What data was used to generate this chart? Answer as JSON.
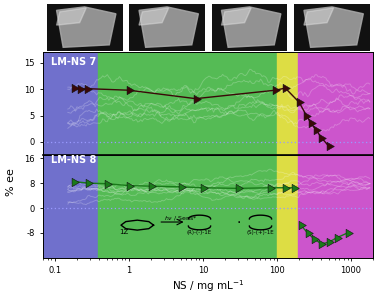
{
  "xlim": [
    0.07,
    2000
  ],
  "bg_blue": [
    0.07,
    0.38
  ],
  "bg_green": [
    0.38,
    100
  ],
  "bg_yellow": [
    100,
    190
  ],
  "bg_purple": [
    190,
    2000
  ],
  "panel1_label": "LM-NS 7",
  "panel2_label": "LM-NS 8",
  "panel1_ylim": [
    -2.5,
    17
  ],
  "panel2_ylim": [
    -16,
    17
  ],
  "panel1_yticks": [
    0,
    5,
    10,
    15
  ],
  "panel2_yticks": [
    -8,
    0,
    8,
    16
  ],
  "xlabel": "NS / mg mL$^{-1}$",
  "ylabel": "% ee",
  "zero_line_color": "#9999ff",
  "color_dark_red": "#3a0808",
  "color_green": "#1a7a1a",
  "color_blue_bg": "#7070cc",
  "color_green_bg": "#55bb55",
  "color_yellow_bg": "#dddd44",
  "color_purple_bg": "#cc55cc",
  "dpi": 100,
  "figsize": [
    3.77,
    2.93
  ],
  "lmns7_x": [
    0.18,
    0.22,
    0.27,
    1.0,
    8.0,
    95,
    130,
    200,
    250,
    290,
    340,
    400,
    500
  ],
  "lmns7_y": [
    10.2,
    10.0,
    10.1,
    9.8,
    8.2,
    9.8,
    10.2,
    7.5,
    5.0,
    3.5,
    2.2,
    0.8,
    -0.8
  ],
  "lmns8_main_x": [
    0.18,
    0.28,
    0.5,
    1.0,
    2.0,
    5.0,
    10.0,
    30.0,
    80.0,
    130,
    170
  ],
  "lmns8_main_y": [
    8.5,
    8.0,
    7.8,
    7.2,
    7.0,
    6.8,
    6.5,
    6.3,
    6.5,
    6.5,
    6.5
  ],
  "lmns8_neg_x": [
    210,
    260,
    320,
    400,
    500,
    650,
    900
  ],
  "lmns8_neg_y": [
    -5.5,
    -8.0,
    -10.0,
    -11.5,
    -11.0,
    -9.5,
    -8.0
  ]
}
